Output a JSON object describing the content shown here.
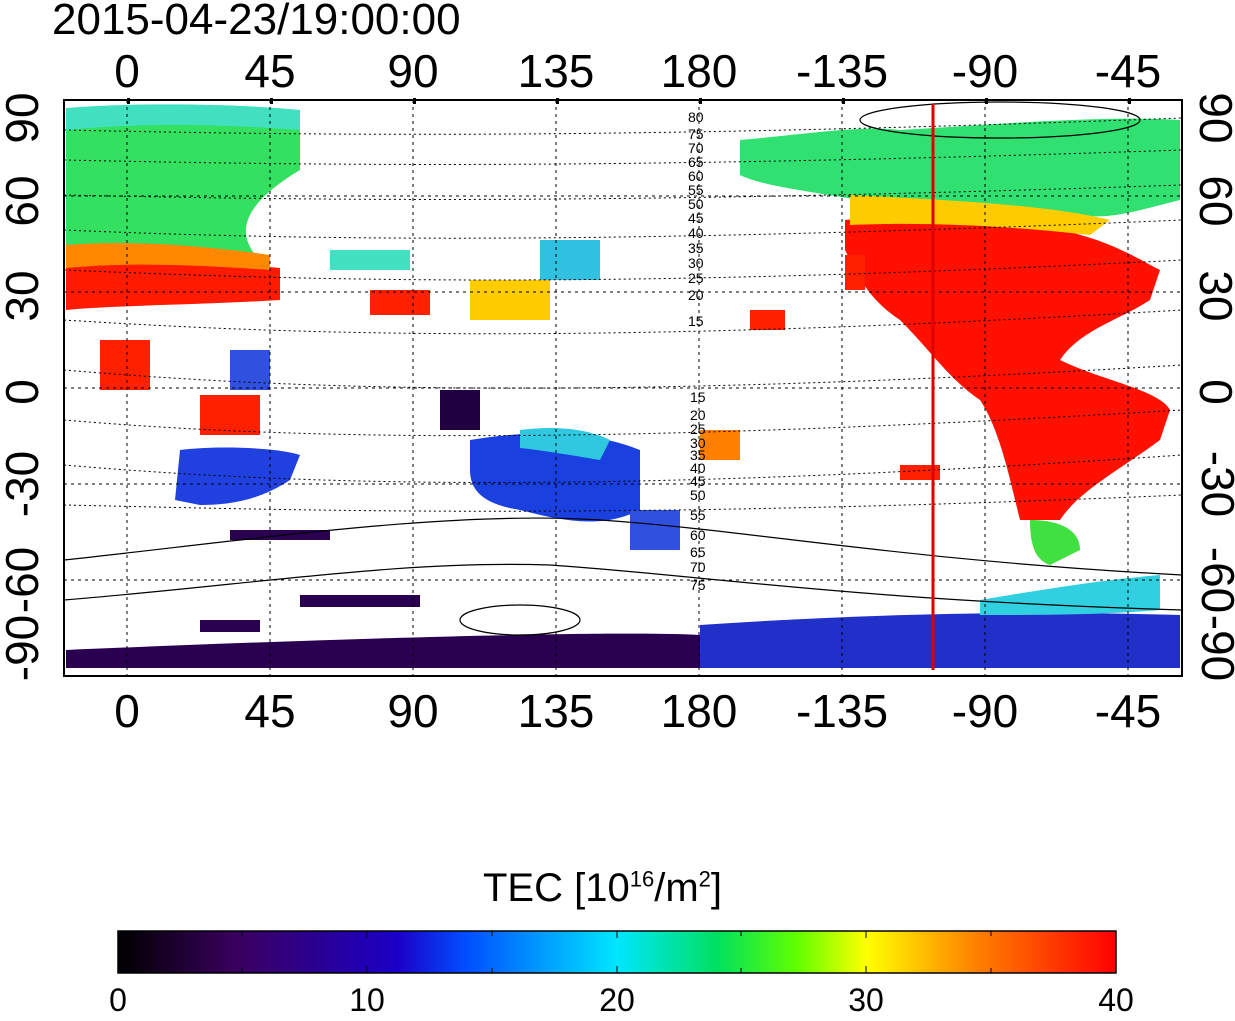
{
  "title": "2015-04-23/19:00:00",
  "map": {
    "lon_tick_labels": [
      "0",
      "45",
      "90",
      "135",
      "180",
      "-135",
      "-90",
      "-45"
    ],
    "lon_tick_values": [
      0,
      45,
      90,
      135,
      180,
      225,
      270,
      315
    ],
    "lat_tick_labels": [
      "90",
      "60",
      "30",
      "0",
      "-30",
      "-60",
      "-90"
    ],
    "lat_tick_values": [
      90,
      60,
      30,
      0,
      -30,
      -60,
      -90
    ],
    "contour_labels_north": [
      "80",
      "75",
      "70",
      "65",
      "60",
      "55",
      "50",
      "45",
      "40",
      "35",
      "30",
      "25",
      "20",
      "15"
    ],
    "contour_labels_south": [
      "15",
      "20",
      "25",
      "30",
      "35",
      "40",
      "45",
      "50",
      "55",
      "60",
      "65",
      "70",
      "75"
    ],
    "terminator_longitude": -105,
    "terminator_color": "#e10000"
  },
  "colorbar": {
    "title_prefix": "TEC  [10",
    "title_exp1": "16",
    "title_mid": "/m",
    "title_exp2": "2",
    "title_suffix": "]",
    "tick_labels": [
      "0",
      "10",
      "20",
      "30",
      "40"
    ],
    "tick_values": [
      0,
      10,
      20,
      30,
      40
    ],
    "min": 0,
    "max": 40,
    "colors": [
      "#000000",
      "#3a0060",
      "#1a00c8",
      "#0050ff",
      "#00e6ff",
      "#00e060",
      "#60ff00",
      "#ffff00",
      "#ff8000",
      "#ff0000"
    ]
  }
}
